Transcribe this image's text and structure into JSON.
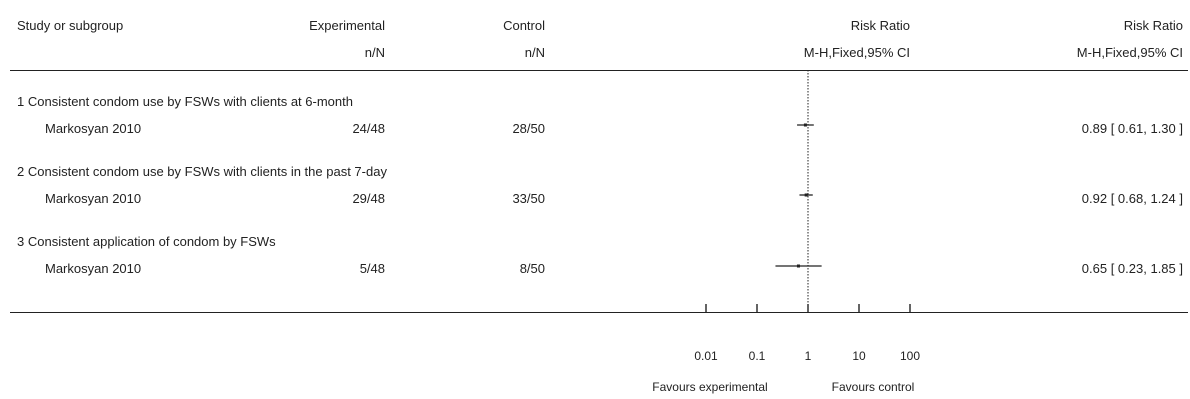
{
  "header": {
    "study": "Study or subgroup",
    "experimental": "Experimental",
    "experimental_sub": "n/N",
    "control": "Control",
    "control_sub": "n/N",
    "risk_ratio_plot": "Risk Ratio",
    "risk_ratio_plot_sub": "M-H,Fixed,95% CI",
    "risk_ratio_text": "Risk Ratio",
    "risk_ratio_text_sub": "M-H,Fixed,95% CI"
  },
  "chart_data": {
    "type": "forest",
    "scale": "log",
    "xlim": [
      0.01,
      100
    ],
    "ticks": [
      "0.01",
      "0.1",
      "1",
      "10",
      "100"
    ],
    "tick_values": [
      0.01,
      0.1,
      1,
      10,
      100
    ],
    "favours_left": "Favours experimental",
    "favours_right": "Favours control",
    "subgroups": [
      {
        "title": "1 Consistent condom use by FSWs with clients at 6-month",
        "study": "Markosyan 2010",
        "experimental": "24/48",
        "control": "28/50",
        "rr": 0.89,
        "lo": 0.61,
        "hi": 1.3,
        "ci_text": "0.89 [ 0.61, 1.30 ]"
      },
      {
        "title": "2 Consistent condom use by FSWs with clients in the past 7-day",
        "study": "Markosyan 2010",
        "experimental": "29/48",
        "control": "33/50",
        "rr": 0.92,
        "lo": 0.68,
        "hi": 1.24,
        "ci_text": "0.92 [ 0.68, 1.24 ]"
      },
      {
        "title": "3 Consistent application of condom by FSWs",
        "study": "Markosyan 2010",
        "experimental": "5/48",
        "control": "8/50",
        "rr": 0.65,
        "lo": 0.23,
        "hi": 1.85,
        "ci_text": "0.65 [ 0.23, 1.85 ]"
      }
    ]
  }
}
